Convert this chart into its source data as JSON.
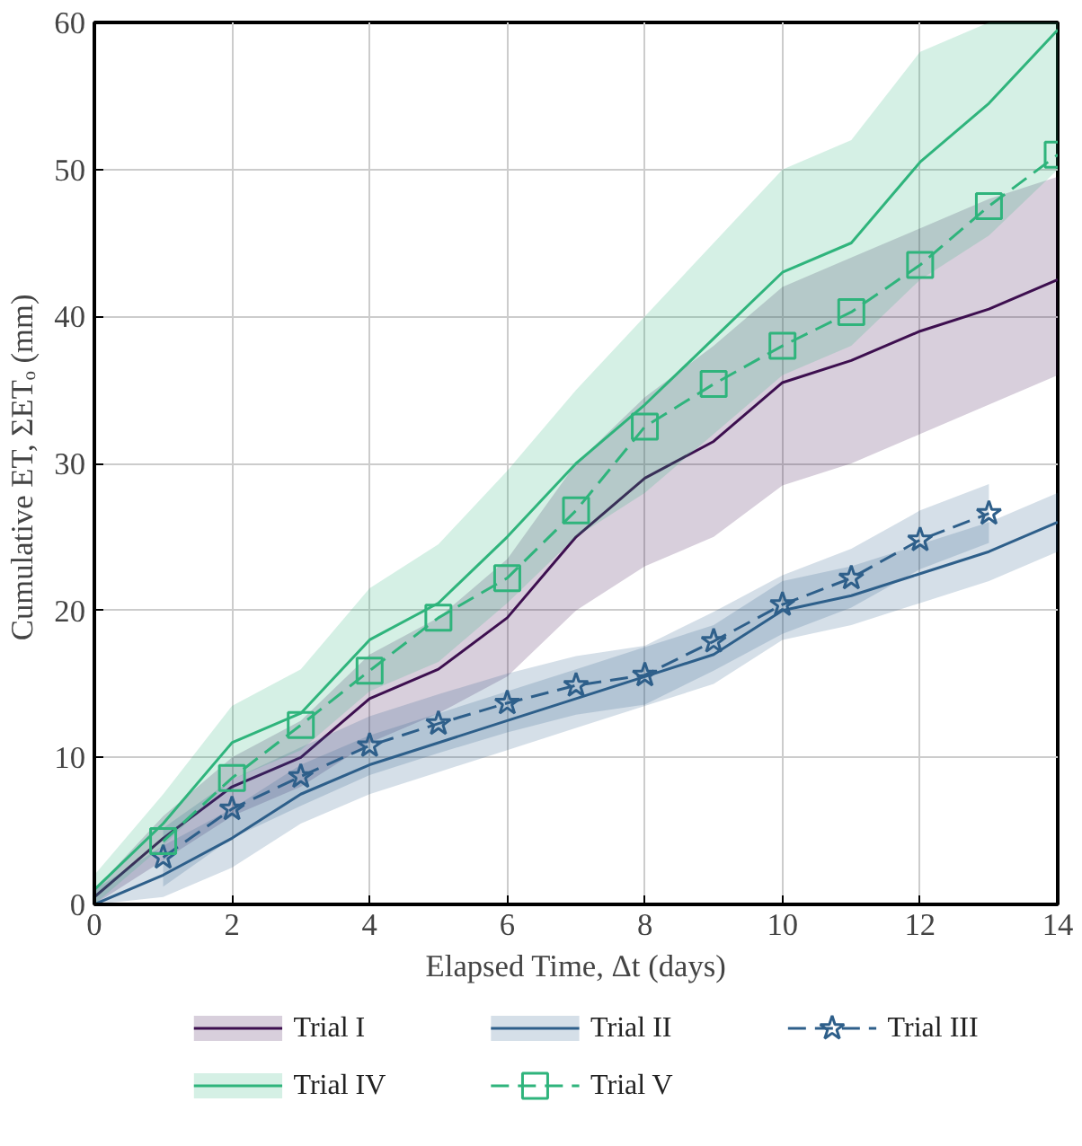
{
  "chart_data": {
    "type": "line",
    "xlabel": "Elapsed Time, Δt (days)",
    "ylabel": "Cumulative ET,  ΣETₒ (mm)",
    "x": [
      0,
      1,
      2,
      3,
      4,
      5,
      6,
      7,
      8,
      9,
      10,
      11,
      12,
      13,
      14
    ],
    "xlim": [
      0,
      14
    ],
    "ylim": [
      0,
      60
    ],
    "xticks": [
      0,
      2,
      4,
      6,
      8,
      10,
      12,
      14
    ],
    "yticks": [
      0,
      10,
      20,
      30,
      40,
      50,
      60
    ],
    "grid": true,
    "legend": "bottom",
    "series": [
      {
        "name": "Trial I",
        "color": "#3d0f4f",
        "marker": "none",
        "line_style": "solid",
        "values": [
          0.5,
          4.5,
          8,
          10,
          14,
          16,
          19.5,
          25,
          29,
          31.5,
          35.5,
          37,
          39,
          40.5,
          42.5
        ],
        "lower": [
          0,
          3,
          6,
          8,
          11,
          13,
          15.5,
          20,
          23,
          25,
          28.5,
          30,
          32,
          34,
          36
        ],
        "upper": [
          1,
          6,
          10,
          12.5,
          17,
          19.5,
          23.5,
          30,
          34.5,
          38,
          42,
          44,
          46,
          48,
          49.5
        ]
      },
      {
        "name": "Trial II",
        "color": "#2e5f8a",
        "marker": "none",
        "line_style": "solid",
        "values": [
          0,
          2,
          4.5,
          7.5,
          9.5,
          11,
          12.5,
          14,
          15.5,
          17,
          20,
          21,
          22.5,
          24,
          26
        ],
        "lower": [
          0,
          0.5,
          2.5,
          5.5,
          7.5,
          9,
          10.5,
          12,
          13.5,
          15,
          18,
          19,
          20.5,
          22,
          24
        ],
        "upper": [
          1,
          4,
          6.5,
          9.5,
          11.5,
          13,
          14.5,
          16,
          17.5,
          19,
          22,
          23,
          24.5,
          26,
          28
        ]
      },
      {
        "name": "Trial III",
        "color": "#2e5f8a",
        "marker": "star",
        "line_style": "dashed",
        "x": [
          1,
          2,
          3,
          4,
          5,
          6,
          7,
          8,
          9,
          10,
          11,
          12,
          13
        ],
        "values": [
          3.2,
          6.5,
          8.7,
          10.8,
          12.3,
          13.7,
          14.9,
          15.6,
          17.9,
          20.4,
          22.2,
          24.8,
          26.6
        ],
        "lower": [
          1.2,
          4.5,
          6.7,
          8.8,
          10.3,
          11.7,
          12.9,
          13.6,
          15.9,
          18.4,
          20.2,
          22.8,
          24.6
        ],
        "upper": [
          5.2,
          8.5,
          10.7,
          12.8,
          14.3,
          15.7,
          16.9,
          17.6,
          19.9,
          22.4,
          24.2,
          26.8,
          28.6
        ]
      },
      {
        "name": "Trial IV",
        "color": "#2fb47c",
        "marker": "none",
        "line_style": "solid",
        "values": [
          1,
          5.5,
          11,
          13,
          18,
          20.5,
          25,
          30,
          34,
          38.5,
          43,
          45,
          50.5,
          54.5,
          59.5
        ],
        "lower": [
          0,
          4,
          8.5,
          10.5,
          14.5,
          16.5,
          20.5,
          25,
          28,
          32,
          36,
          38,
          42.5,
          45.5,
          50
        ],
        "upper": [
          2,
          7.5,
          13.5,
          16,
          21.5,
          24.5,
          29.5,
          35,
          40,
          45,
          50,
          52,
          58,
          60,
          60
        ]
      },
      {
        "name": "Trial V",
        "color": "#2fb47c",
        "marker": "square",
        "line_style": "dashed",
        "x": [
          1,
          2,
          3,
          4,
          5,
          6,
          7,
          8,
          9,
          10,
          11,
          12,
          13,
          14
        ],
        "values": [
          4.3,
          8.6,
          12.2,
          15.9,
          19.5,
          22.2,
          26.8,
          32.5,
          35.4,
          38,
          40.3,
          43.5,
          47.5,
          51
        ]
      }
    ]
  }
}
